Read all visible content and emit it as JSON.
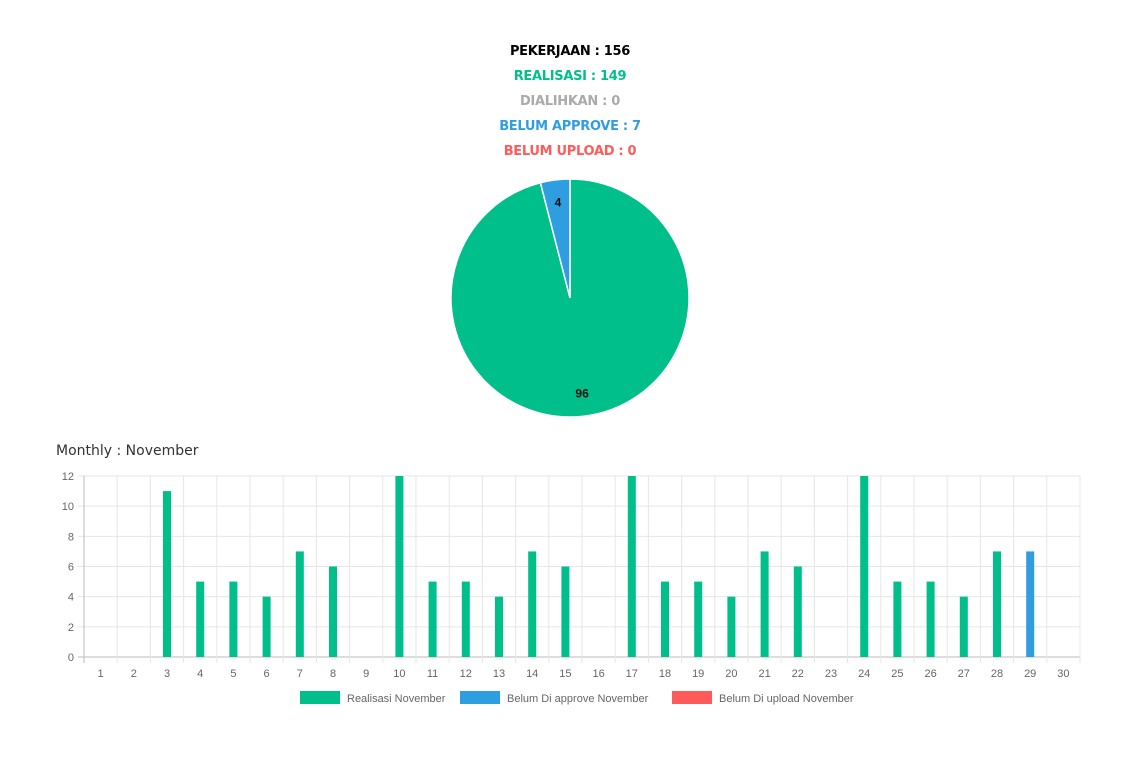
{
  "summary": {
    "pekerjaan": {
      "text": "PEKERJAAN : 156",
      "color": "#000000"
    },
    "realisasi": {
      "text": "REALISASI : 149",
      "color": "#00bf8a"
    },
    "dialihkan": {
      "text": "DIALIHKAN : 0",
      "color": "#aaaaaa"
    },
    "belum_approve": {
      "text": "BELUM APPROVE : 7",
      "color": "#2f9ee0"
    },
    "belum_upload": {
      "text": "BELUM UPLOAD : 0",
      "color": "#ff5b5b"
    }
  },
  "monthly_title": "Monthly : November",
  "chart_data": [
    {
      "type": "pie",
      "slices": [
        {
          "label": "96",
          "value": 96,
          "color": "#00bf8a"
        },
        {
          "label": "4",
          "value": 4,
          "color": "#2f9ee0"
        }
      ]
    },
    {
      "type": "bar",
      "title": "Monthly : November",
      "categories": [
        "1",
        "2",
        "3",
        "4",
        "5",
        "6",
        "7",
        "8",
        "9",
        "10",
        "11",
        "12",
        "13",
        "14",
        "15",
        "16",
        "17",
        "18",
        "19",
        "20",
        "21",
        "22",
        "23",
        "24",
        "25",
        "26",
        "27",
        "28",
        "29",
        "30"
      ],
      "series": [
        {
          "name": "Realisasi November",
          "color": "#00bf8a",
          "values": [
            0,
            0,
            11,
            5,
            5,
            4,
            7,
            6,
            0,
            12,
            5,
            5,
            4,
            7,
            6,
            0,
            12,
            5,
            5,
            4,
            7,
            6,
            0,
            12,
            5,
            5,
            4,
            7,
            0,
            0
          ]
        },
        {
          "name": "Belum Di approve November",
          "color": "#2f9ee0",
          "values": [
            0,
            0,
            0,
            0,
            0,
            0,
            0,
            0,
            0,
            0,
            0,
            0,
            0,
            0,
            0,
            0,
            0,
            0,
            0,
            0,
            0,
            0,
            0,
            0,
            0,
            0,
            0,
            0,
            7,
            0
          ]
        },
        {
          "name": "Belum Di upload November",
          "color": "#ff5b5b",
          "values": [
            0,
            0,
            0,
            0,
            0,
            0,
            0,
            0,
            0,
            0,
            0,
            0,
            0,
            0,
            0,
            0,
            0,
            0,
            0,
            0,
            0,
            0,
            0,
            0,
            0,
            0,
            0,
            0,
            0,
            0
          ]
        }
      ],
      "yticks": [
        "0",
        "2",
        "4",
        "6",
        "8",
        "10",
        "12"
      ],
      "ylim": [
        0,
        12
      ],
      "grid": true,
      "legend": "bottom"
    }
  ]
}
